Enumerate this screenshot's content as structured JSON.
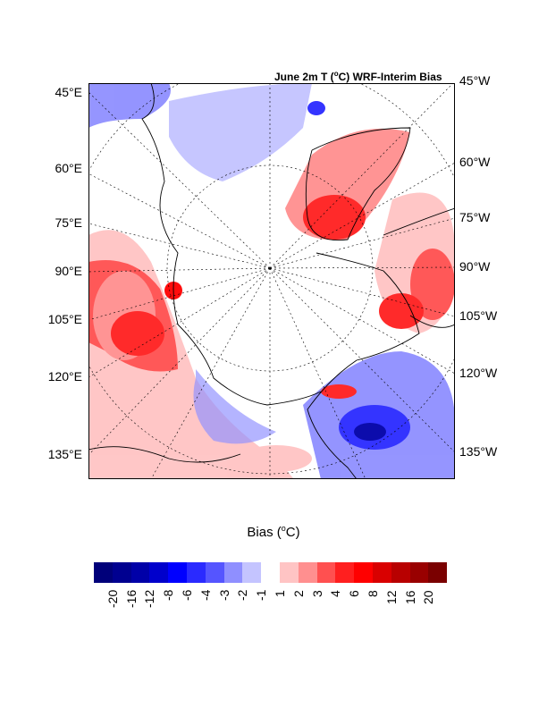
{
  "title_pre": "June 2m T (",
  "title_unit": "o",
  "title_post": "C) WRF-Interim Bias",
  "left_labels": [
    "45°E",
    "60°E",
    "75°E",
    "90°E",
    "105°E",
    "120°E",
    "135°E"
  ],
  "right_labels": [
    "45°W",
    "60°W",
    "75°W",
    "90°W",
    "105°W",
    "120°W",
    "135°W"
  ],
  "colorbar": {
    "title_pre": "Bias (",
    "title_unit": "o",
    "title_post": "C)",
    "tick_labels": [
      "-20",
      "-16",
      "-12",
      "-8",
      "-6",
      "-4",
      "-3",
      "-2",
      "-1",
      "1",
      "2",
      "3",
      "4",
      "6",
      "8",
      "12",
      "16",
      "20"
    ],
    "colors": [
      "#00007a",
      "#000090",
      "#0000a8",
      "#0000cc",
      "#0000ff",
      "#2a2aff",
      "#5555ff",
      "#8f8fff",
      "#c4c4ff",
      "#ffffff",
      "#ffc4c4",
      "#ff8f8f",
      "#ff5050",
      "#ff1f1f",
      "#ff0000",
      "#d90000",
      "#b80000",
      "#990000",
      "#7a0000"
    ]
  }
}
